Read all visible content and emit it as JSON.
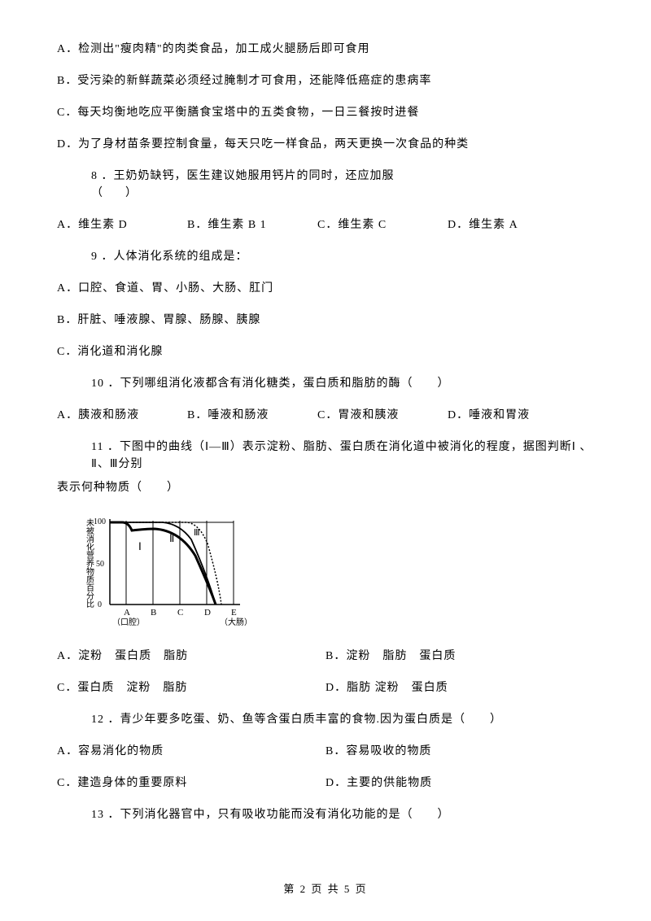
{
  "q7": {
    "A": "A．检测出\"瘦肉精\"的肉类食品，加工成火腿肠后即可食用",
    "B": "B．受污染的新鲜蔬菜必须经过腌制才可食用，还能降低癌症的患病率",
    "C": "C．每天均衡地吃应平衡膳食宝塔中的五类食物，一日三餐按时进餐",
    "D": "D．为了身材苗条要控制食量，每天只吃一样食品，两天更换一次食品的种类"
  },
  "q8": {
    "stem": "8 ．王奶奶缺钙，医生建议她服用钙片的同时，还应加服",
    "paren": "（　　）",
    "A": "A．维生素 D",
    "B": "B．维生素 B 1",
    "C": "C．维生素 C",
    "D": "D．维生素 A"
  },
  "q9": {
    "stem": "9 ．人体消化系统的组成是：",
    "A": "A．口腔、食道、胃、小肠、大肠、肛门",
    "B": "B．肝脏、唾液腺、胃腺、肠腺、胰腺",
    "C": "C．消化道和消化腺"
  },
  "q10": {
    "stem": "10 ．下列哪组消化液都含有消化糖类，蛋白质和脂肪的酶（　　）",
    "A": "A．胰液和肠液",
    "B": "B．唾液和肠液",
    "C": "C．胃液和胰液",
    "D": "D．唾液和胃液"
  },
  "q11": {
    "stem1": "11 ．下图中的曲线（Ⅰ—Ⅲ）表示淀粉、脂肪、蛋白质在消化道中被消化的程度，据图判断Ⅰ 、Ⅱ、Ⅲ分别",
    "stem2": "表示何种物质（　　）",
    "A": "A．淀粉　蛋白质　脂肪",
    "B": "B．淀粉　脂肪　蛋白质",
    "C": "C．蛋白质　淀粉　脂肪",
    "D": "D．脂肪 淀粉　蛋白质"
  },
  "q12": {
    "stem": "12 ．青少年要多吃蛋、奶、鱼等含蛋白质丰富的食物.因为蛋白质是（　　）",
    "A": "A．容易消化的物质",
    "B": "B．容易吸收的物质",
    "C": "C．建造身体的重要原料",
    "D": "D．主要的供能物质"
  },
  "q13": {
    "stem": "13 ．下列消化器官中，只有吸收功能而没有消化功能的是（　　）"
  },
  "chart": {
    "yaxis_label": "未被消化营养物质百分比",
    "yticks": [
      "0",
      "50",
      "100"
    ],
    "xlabels": [
      "A",
      "B",
      "C",
      "D",
      "E"
    ],
    "xsub_first": "（口腔）",
    "xsub_last": "（大肠）",
    "curve_labels": [
      "Ⅰ",
      "Ⅱ",
      "Ⅲ"
    ],
    "stroke": "#000000",
    "bg": "#ffffff"
  },
  "footer": "第 2 页 共 5 页"
}
